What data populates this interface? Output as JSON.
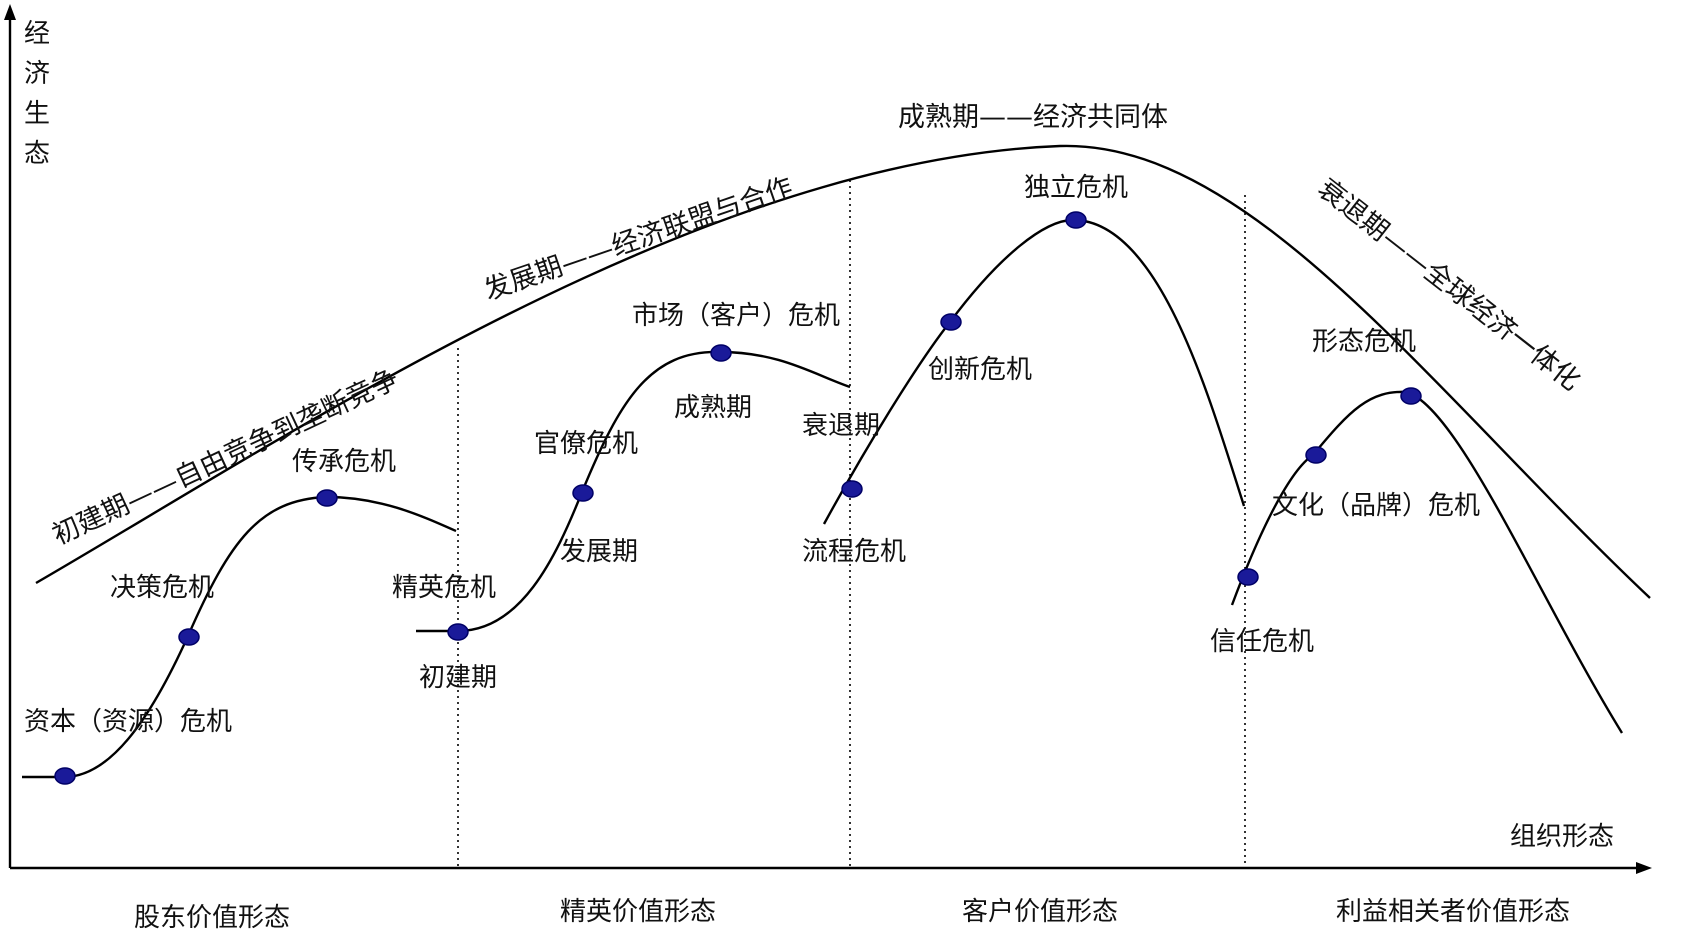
{
  "axes": {
    "y_label": [
      "经",
      "济",
      "生",
      "态"
    ],
    "x_label": "组织形态"
  },
  "phases": [
    "股东价值形态",
    "精英价值形态",
    "客户价值形态",
    "利益相关者价值形态"
  ],
  "big_curve": {
    "stage1": "初建期——自由竞争到垄断竞争",
    "stage2": "发展期——经济联盟与合作",
    "stage3": "成熟期——经济共同体",
    "stage4": "衰退期——全球经济一体化"
  },
  "curve1": {
    "crisis1": "资本（资源）危机",
    "crisis2": "决策危机",
    "crisis3": "传承危机"
  },
  "curve2": {
    "start": "精英危机",
    "stage_init": "初建期",
    "crisis1": "官僚危机",
    "stage_dev": "发展期",
    "crisis2": "市场（客户）危机",
    "stage_mature": "成熟期",
    "stage_decline": "衰退期"
  },
  "curve3": {
    "crisis1": "流程危机",
    "crisis2": "创新危机",
    "crisis3": "独立危机"
  },
  "curve4": {
    "crisis1": "信任危机",
    "crisis2": "文化（品牌）危机",
    "crisis3": "形态危机"
  },
  "colors": {
    "line": "#000000",
    "dot_fill": "#1a1a99"
  },
  "icons": {
    "y_axis_arrow": "arrow-up",
    "x_axis_arrow": "arrow-right"
  }
}
